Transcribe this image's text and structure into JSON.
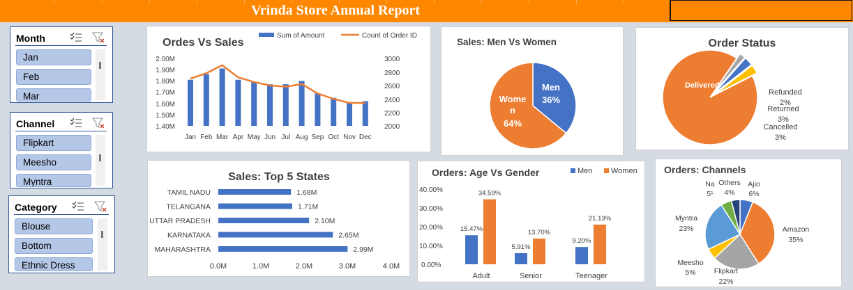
{
  "report_title": "Vrinda Store Annual Report",
  "slicers": {
    "month": {
      "title": "Month",
      "items": [
        "Jan",
        "Feb",
        "Mar"
      ]
    },
    "channel": {
      "title": "Channel",
      "items": [
        "Flipkart",
        "Meesho",
        "Myntra"
      ]
    },
    "category": {
      "title": "Category",
      "items": [
        "Blouse",
        "Bottom",
        "Ethnic Dress"
      ]
    }
  },
  "icons": {
    "multi_select": "multi-select-icon",
    "clear_filter": "clear-filter-icon"
  },
  "colors": {
    "banner": "#ff8700",
    "blue": "#4472c4",
    "orange": "#ed7d31",
    "gray": "#a5a5a5",
    "yellow": "#ffc000",
    "light_blue": "#5b9bd5",
    "green": "#70ad47",
    "dark_blue": "#264478",
    "slicer_item": "#b4c7e7"
  },
  "charts": {
    "orders_vs_sales": {
      "title": "Ordes Vs Sales",
      "legend": [
        "Sum of Amount",
        "Count of Order ID"
      ],
      "left_ticks": [
        "1.40M",
        "1.50M",
        "1.60M",
        "1.70M",
        "1.80M",
        "1.90M",
        "2.00M"
      ],
      "right_ticks": [
        "2000",
        "2200",
        "2400",
        "2600",
        "2800",
        "3000"
      ]
    },
    "men_vs_women": {
      "title": "Sales: Men Vs Women",
      "labels": [
        "Men",
        "36%",
        "Wome",
        "n",
        "64%"
      ]
    },
    "order_status": {
      "title": "Order Status",
      "labels": [
        "Delivered",
        "Refunded",
        "2%",
        "Returned",
        "3%",
        "Cancelled",
        "3%"
      ]
    },
    "top_states": {
      "title": "Sales: Top 5 States",
      "data_labels": [
        "1.68M",
        "1.71M",
        "2.10M",
        "2.65M",
        "2.99M"
      ],
      "ticks": [
        "0.0M",
        "1.0M",
        "2.0M",
        "3.0M",
        "4.0M"
      ]
    },
    "age_vs_gender": {
      "title": "Orders: Age Vs Gender",
      "legend": [
        "Men",
        "Women"
      ],
      "data_labels": [
        "15.47%",
        "34.59%",
        "5.91%",
        "13.70%",
        "9.20%",
        "21.13%"
      ],
      "ticks": [
        "0.00%",
        "10.00%",
        "20.00%",
        "30.00%",
        "40.00%"
      ]
    },
    "channels": {
      "title": "Orders: Channels",
      "labels": [
        "Ajio",
        "6%",
        "Amazon",
        "35%",
        "Flipkart",
        "22%",
        "Meesho",
        "5%",
        "Myntra",
        "23%",
        "Na",
        "5¹",
        "Others",
        "4%"
      ]
    }
  },
  "chart_data": [
    {
      "type": "bar",
      "title": "Ordes Vs Sales",
      "categories": [
        "Jan",
        "Feb",
        "Mar",
        "Apr",
        "May",
        "Jun",
        "Jul",
        "Aug",
        "Sep",
        "Oct",
        "Nov",
        "Dec"
      ],
      "series": [
        {
          "name": "Sum of Amount",
          "type": "bar",
          "axis": "left",
          "values": [
            1.81,
            1.86,
            1.91,
            1.81,
            1.79,
            1.77,
            1.77,
            1.8,
            1.69,
            1.65,
            1.61,
            1.62
          ]
        },
        {
          "name": "Count of Order ID",
          "type": "line",
          "axis": "right",
          "values": [
            2700,
            2780,
            2900,
            2720,
            2650,
            2600,
            2580,
            2620,
            2480,
            2400,
            2340,
            2340
          ]
        }
      ],
      "ylim_left": [
        1.4,
        2.0
      ],
      "ylim_right": [
        2000,
        3000
      ],
      "legend": "top"
    },
    {
      "type": "pie",
      "title": "Sales: Men Vs Women",
      "categories": [
        "Men",
        "Women"
      ],
      "values": [
        36,
        64
      ]
    },
    {
      "type": "pie",
      "title": "Order Status",
      "categories": [
        "Delivered",
        "Refunded",
        "Returned",
        "Cancelled"
      ],
      "values": [
        92,
        2,
        3,
        3
      ]
    },
    {
      "type": "bar",
      "orientation": "horizontal",
      "title": "Sales: Top 5 States",
      "categories": [
        "TAMIL NADU",
        "TELANGANA",
        "UTTAR PRADESH",
        "KARNATAKA",
        "MAHARASHTRA"
      ],
      "values": [
        1.68,
        1.71,
        2.1,
        2.65,
        2.99
      ],
      "xlim": [
        0,
        4
      ]
    },
    {
      "type": "bar",
      "title": "Orders: Age Vs Gender",
      "categories": [
        "Adult",
        "Senior",
        "Teenager"
      ],
      "series": [
        {
          "name": "Men",
          "values": [
            15.47,
            5.91,
            9.2
          ]
        },
        {
          "name": "Women",
          "values": [
            34.59,
            13.7,
            21.13
          ]
        }
      ],
      "ylim": [
        0,
        40
      ],
      "legend": "top-right"
    },
    {
      "type": "pie",
      "title": "Orders: Channels",
      "categories": [
        "Ajio",
        "Amazon",
        "Flipkart",
        "Meesho",
        "Myntra",
        "Na",
        "Others"
      ],
      "values": [
        6,
        35,
        22,
        5,
        23,
        5,
        4
      ]
    }
  ]
}
